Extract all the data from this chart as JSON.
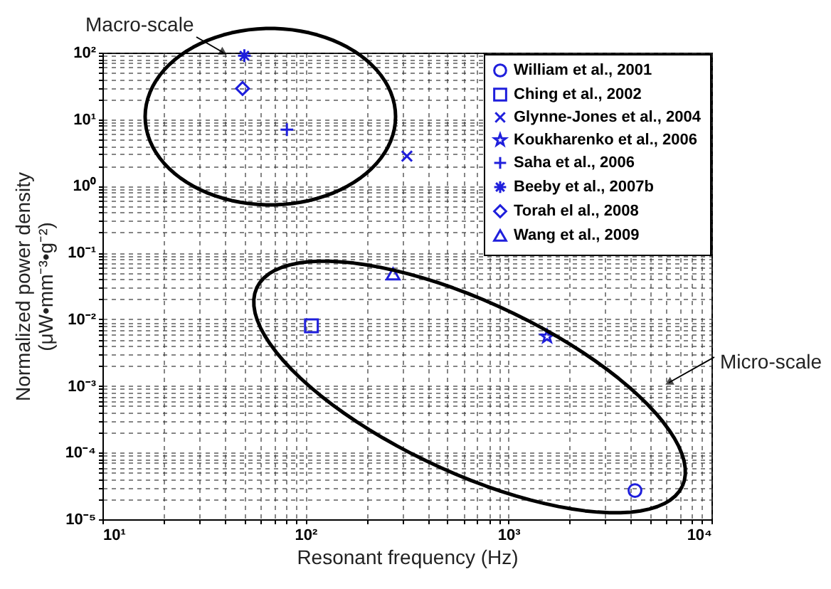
{
  "chart_data": {
    "type": "scatter",
    "xlabel": "Resonant frequency (Hz)",
    "ylabel": "Normalized power density\n(μW•mm⁻³•g⁻²)",
    "log": "xy",
    "xlim": [
      10,
      10000
    ],
    "ylim": [
      1e-05,
      100
    ],
    "xticks": [
      {
        "value": 10,
        "label": "10¹"
      },
      {
        "value": 100,
        "label": "10²"
      },
      {
        "value": 1000,
        "label": "10³"
      },
      {
        "value": 10000,
        "label": "10⁴"
      }
    ],
    "yticks": [
      {
        "value": 1e-05,
        "label": "10⁻⁵"
      },
      {
        "value": 0.0001,
        "label": "10⁻⁴"
      },
      {
        "value": 0.001,
        "label": "10⁻³"
      },
      {
        "value": 0.01,
        "label": "10⁻²"
      },
      {
        "value": 0.1,
        "label": "10⁻¹"
      },
      {
        "value": 1,
        "label": "10⁰"
      },
      {
        "value": 10,
        "label": "10¹"
      },
      {
        "value": 100,
        "label": "10²"
      }
    ],
    "grid": true,
    "legend": "top right",
    "annotations": [
      "Macro-scale",
      "Micro-scale"
    ],
    "series": [
      {
        "name": "William et al., 2001",
        "color": "#1f1fdc",
        "marker": "circle",
        "x": [
          4200
        ],
        "values": [
          2.7e-05
        ]
      },
      {
        "name": "Ching et al., 2002",
        "color": "#1f1fdc",
        "marker": "square",
        "x": [
          107
        ],
        "values": [
          0.008
        ]
      },
      {
        "name": "Glynne-Jones et al., 2004",
        "color": "#1f1fdc",
        "marker": "x",
        "x": [
          316
        ],
        "values": [
          2.8
        ]
      },
      {
        "name": "Koukharenko et al., 2006",
        "color": "#1f1fdc",
        "marker": "star",
        "x": [
          1550
        ],
        "values": [
          0.0055
        ]
      },
      {
        "name": "Saha et al., 2006",
        "color": "#1f1fdc",
        "marker": "plus",
        "x": [
          81
        ],
        "values": [
          7
        ]
      },
      {
        "name": "Beeby et al., 2007b",
        "color": "#1f1fdc",
        "marker": "cross",
        "x": [
          50
        ],
        "values": [
          90
        ]
      },
      {
        "name": "Torah el al., 2008",
        "color": "#1f1fdc",
        "marker": "diamond",
        "x": [
          49
        ],
        "values": [
          29
        ]
      },
      {
        "name": "Wang et al., 2009",
        "color": "#1f1fdc",
        "marker": "triangle",
        "x": [
          270
        ],
        "values": [
          0.048
        ]
      }
    ]
  }
}
